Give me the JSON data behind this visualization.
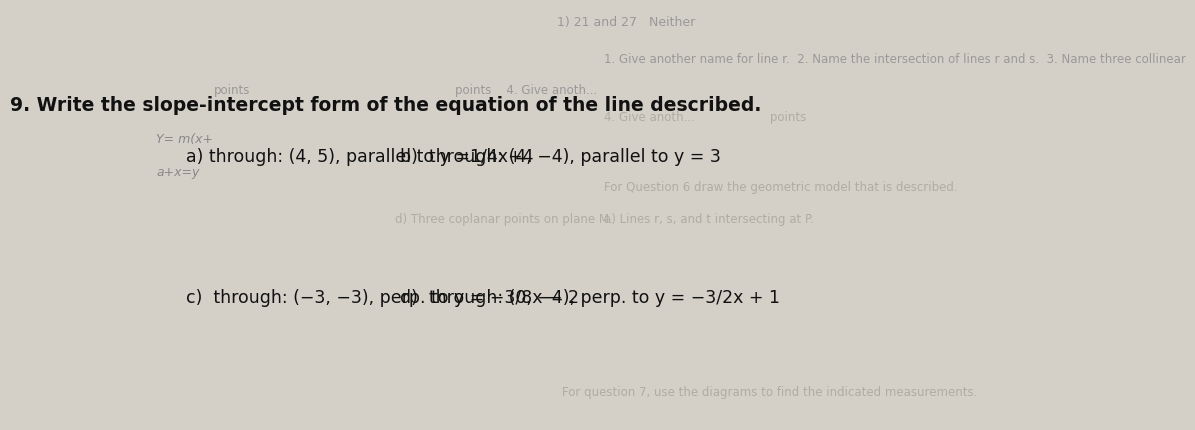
{
  "background_color": "#d4d0c8",
  "title": "9. Write the slope-intercept form of the equation of the line described.",
  "title_fontsize": 13.5,
  "part_a": "a) through: (4, 5), parallel to y =1/4x+4",
  "part_b": "b)  through: (4, -4), parallel to y = 3",
  "part_c": "c)  through: (-3, -3), perp. to y = -3/8x -2",
  "part_d": "d)  through: (0, -4), perp. to y = -3/2x + 1",
  "text_color": "#111111",
  "fontsize_parts": 12.5,
  "faded_color": "#999999",
  "faded_color2": "#b0aca4",
  "top_line1": "1) 21 and 27   Neither",
  "top_line2": "1. Give another name for line r.  2. Name the intersection of lines r and s.  3. Name three collinear",
  "top_line3_left": "points",
  "top_line3_right": "4. Give anoth...",
  "title_right_faded1": "4. Give anoth...",
  "mid_line1": "For Question 6 draw the geometric model that is described.",
  "mid_line2a": "a) Lines r, s, and t intersecting at P.",
  "mid_line2d": "d) Three coplanar points on plane M.",
  "bot_line": "For question 7, use the diagrams to find the indicated measurements.",
  "side_line1": "Y= m(x+",
  "side_line2": "a+x=y"
}
